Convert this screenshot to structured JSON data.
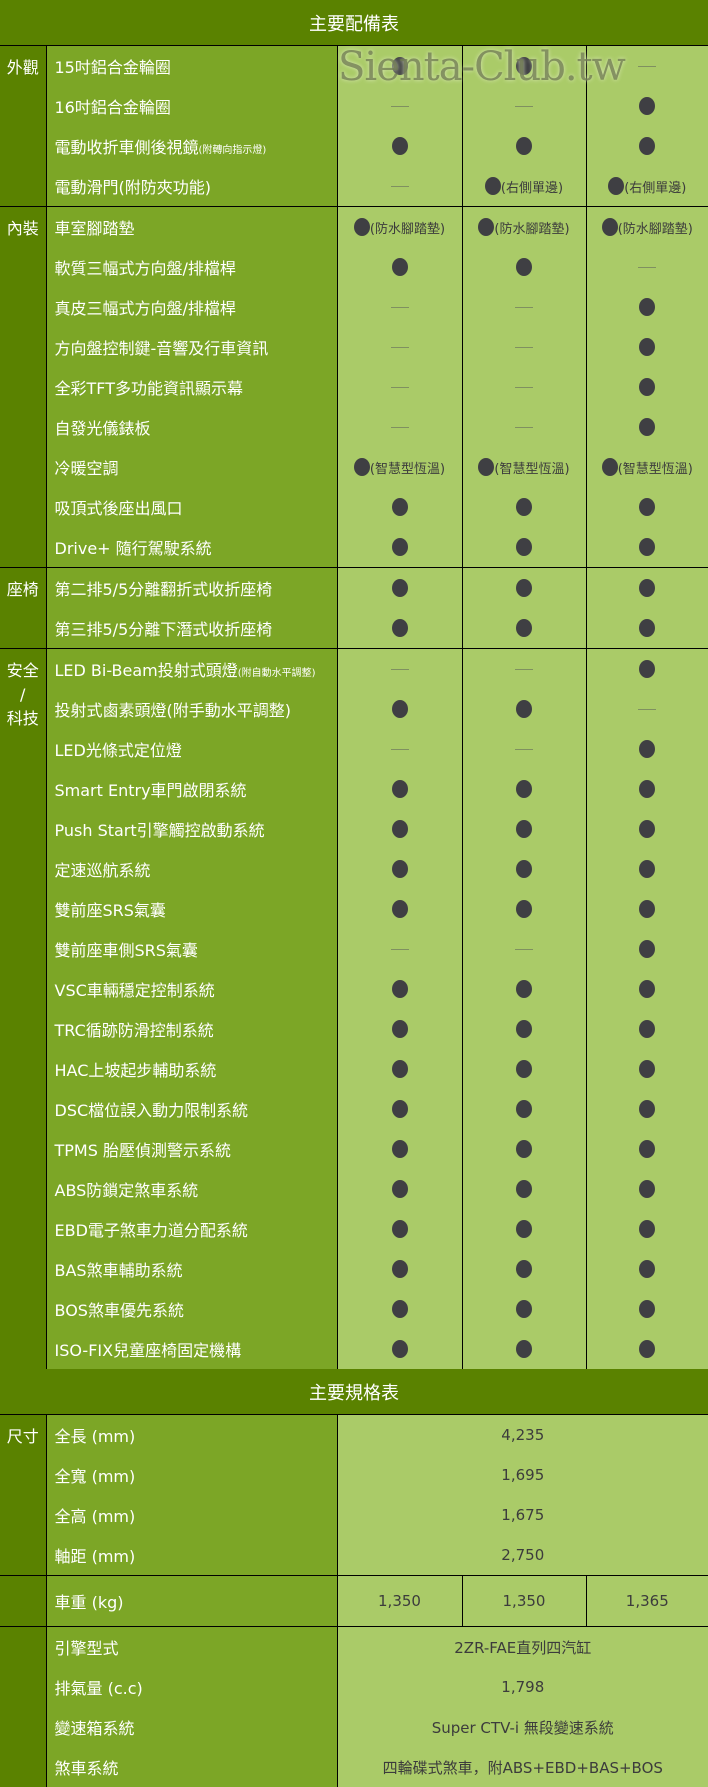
{
  "equipment": {
    "title": "主要配備表",
    "sections": [
      {
        "name": "外觀",
        "rows": [
          {
            "label": "15吋鋁合金輪圈",
            "values": [
              {
                "mark": "dot"
              },
              {
                "mark": "dot"
              },
              {
                "mark": "dash"
              }
            ]
          },
          {
            "label": "16吋鋁合金輪圈",
            "values": [
              {
                "mark": "dash"
              },
              {
                "mark": "dash"
              },
              {
                "mark": "dot"
              }
            ]
          },
          {
            "label": "電動收折車側後視鏡",
            "label_small": "(附轉向指示燈)",
            "values": [
              {
                "mark": "dot"
              },
              {
                "mark": "dot"
              },
              {
                "mark": "dot"
              }
            ]
          },
          {
            "label": "電動滑門(附防夾功能)",
            "values": [
              {
                "mark": "dash"
              },
              {
                "mark": "dot",
                "note": "(右側單邊)"
              },
              {
                "mark": "dot",
                "note": "(右側單邊)"
              }
            ]
          }
        ]
      },
      {
        "name": "內裝",
        "rows": [
          {
            "label": "車室腳踏墊",
            "values": [
              {
                "mark": "dot",
                "note": "(防水腳踏墊)"
              },
              {
                "mark": "dot",
                "note": "(防水腳踏墊)"
              },
              {
                "mark": "dot",
                "note": "(防水腳踏墊)"
              }
            ]
          },
          {
            "label": "軟質三幅式方向盤/排檔桿",
            "values": [
              {
                "mark": "dot"
              },
              {
                "mark": "dot"
              },
              {
                "mark": "dash"
              }
            ]
          },
          {
            "label": "真皮三幅式方向盤/排檔桿",
            "values": [
              {
                "mark": "dash"
              },
              {
                "mark": "dash"
              },
              {
                "mark": "dot"
              }
            ]
          },
          {
            "label": "方向盤控制鍵-音響及行車資訊",
            "values": [
              {
                "mark": "dash"
              },
              {
                "mark": "dash"
              },
              {
                "mark": "dot"
              }
            ]
          },
          {
            "label": "全彩TFT多功能資訊顯示幕",
            "values": [
              {
                "mark": "dash"
              },
              {
                "mark": "dash"
              },
              {
                "mark": "dot"
              }
            ]
          },
          {
            "label": "自發光儀錶板",
            "values": [
              {
                "mark": "dash"
              },
              {
                "mark": "dash"
              },
              {
                "mark": "dot"
              }
            ]
          },
          {
            "label": "冷暖空調",
            "values": [
              {
                "mark": "dot",
                "note": "(智慧型恆溫)"
              },
              {
                "mark": "dot",
                "note": "(智慧型恆溫)"
              },
              {
                "mark": "dot",
                "note": "(智慧型恆溫)"
              }
            ]
          },
          {
            "label": "吸頂式後座出風口",
            "values": [
              {
                "mark": "dot"
              },
              {
                "mark": "dot"
              },
              {
                "mark": "dot"
              }
            ]
          },
          {
            "label": "Drive+ 隨行駕駛系統",
            "values": [
              {
                "mark": "dot"
              },
              {
                "mark": "dot"
              },
              {
                "mark": "dot"
              }
            ]
          }
        ]
      },
      {
        "name": "座椅",
        "rows": [
          {
            "label": "第二排5/5分離翻折式收折座椅",
            "values": [
              {
                "mark": "dot"
              },
              {
                "mark": "dot"
              },
              {
                "mark": "dot"
              }
            ]
          },
          {
            "label": "第三排5/5分離下潛式收折座椅",
            "values": [
              {
                "mark": "dot"
              },
              {
                "mark": "dot"
              },
              {
                "mark": "dot"
              }
            ]
          }
        ]
      },
      {
        "name": "安全\n/\n科技",
        "rows": [
          {
            "label": "LED Bi-Beam投射式頭燈",
            "label_small": "(附自動水平調整)",
            "values": [
              {
                "mark": "dash"
              },
              {
                "mark": "dash"
              },
              {
                "mark": "dot"
              }
            ]
          },
          {
            "label": "投射式鹵素頭燈(附手動水平調整)",
            "values": [
              {
                "mark": "dot"
              },
              {
                "mark": "dot"
              },
              {
                "mark": "dash"
              }
            ]
          },
          {
            "label": "LED光條式定位燈",
            "values": [
              {
                "mark": "dash"
              },
              {
                "mark": "dash"
              },
              {
                "mark": "dot"
              }
            ]
          },
          {
            "label": "Smart Entry車門啟閉系統",
            "values": [
              {
                "mark": "dot"
              },
              {
                "mark": "dot"
              },
              {
                "mark": "dot"
              }
            ]
          },
          {
            "label": "Push Start引擎觸控啟動系統",
            "values": [
              {
                "mark": "dot"
              },
              {
                "mark": "dot"
              },
              {
                "mark": "dot"
              }
            ]
          },
          {
            "label": "定速巡航系統",
            "values": [
              {
                "mark": "dot"
              },
              {
                "mark": "dot"
              },
              {
                "mark": "dot"
              }
            ]
          },
          {
            "label": "雙前座SRS氣囊",
            "values": [
              {
                "mark": "dot"
              },
              {
                "mark": "dot"
              },
              {
                "mark": "dot"
              }
            ]
          },
          {
            "label": "雙前座車側SRS氣囊",
            "values": [
              {
                "mark": "dash"
              },
              {
                "mark": "dash"
              },
              {
                "mark": "dot"
              }
            ]
          },
          {
            "label": "VSC車輛穩定控制系統",
            "values": [
              {
                "mark": "dot"
              },
              {
                "mark": "dot"
              },
              {
                "mark": "dot"
              }
            ]
          },
          {
            "label": "TRC循跡防滑控制系統",
            "values": [
              {
                "mark": "dot"
              },
              {
                "mark": "dot"
              },
              {
                "mark": "dot"
              }
            ]
          },
          {
            "label": "HAC上坡起步輔助系統",
            "values": [
              {
                "mark": "dot"
              },
              {
                "mark": "dot"
              },
              {
                "mark": "dot"
              }
            ]
          },
          {
            "label": "DSC檔位誤入動力限制系統",
            "values": [
              {
                "mark": "dot"
              },
              {
                "mark": "dot"
              },
              {
                "mark": "dot"
              }
            ]
          },
          {
            "label": "TPMS 胎壓偵測警示系統",
            "values": [
              {
                "mark": "dot"
              },
              {
                "mark": "dot"
              },
              {
                "mark": "dot"
              }
            ]
          },
          {
            "label": "ABS防鎖定煞車系統",
            "values": [
              {
                "mark": "dot"
              },
              {
                "mark": "dot"
              },
              {
                "mark": "dot"
              }
            ]
          },
          {
            "label": "EBD電子煞車力道分配系統",
            "values": [
              {
                "mark": "dot"
              },
              {
                "mark": "dot"
              },
              {
                "mark": "dot"
              }
            ]
          },
          {
            "label": "BAS煞車輔助系統",
            "values": [
              {
                "mark": "dot"
              },
              {
                "mark": "dot"
              },
              {
                "mark": "dot"
              }
            ]
          },
          {
            "label": "BOS煞車優先系統",
            "values": [
              {
                "mark": "dot"
              },
              {
                "mark": "dot"
              },
              {
                "mark": "dot"
              }
            ]
          },
          {
            "label": "ISO-FIX兒童座椅固定機構",
            "values": [
              {
                "mark": "dot"
              },
              {
                "mark": "dot"
              },
              {
                "mark": "dot"
              }
            ]
          }
        ]
      }
    ]
  },
  "specs": {
    "title": "主要規格表",
    "sections": [
      {
        "name": "尺寸",
        "rows": [
          {
            "label": "全長 (mm)",
            "values": [
              "4,235"
            ]
          },
          {
            "label": "全寬 (mm)",
            "values": [
              "1,695"
            ]
          },
          {
            "label": "全高 (mm)",
            "values": [
              "1,675"
            ]
          },
          {
            "label": "軸距 (mm)",
            "values": [
              "2,750"
            ]
          }
        ]
      },
      {
        "name": "",
        "rows": [
          {
            "label": "車重 (kg)",
            "values": [
              "1,350",
              "1,350",
              "1,365"
            ]
          }
        ]
      },
      {
        "name": "",
        "rows": [
          {
            "label": "引擎型式",
            "values": [
              "2ZR-FAE直列四汽缸"
            ]
          },
          {
            "label": "排氣量 (c.c)",
            "values": [
              "1,798"
            ]
          },
          {
            "label": "變速箱系統",
            "values": [
              "Super CTV-i 無段變速系統"
            ]
          },
          {
            "label": "煞車系統",
            "values": [
              "四輪碟式煞車，附ABS+EBD+BAS+BOS"
            ]
          }
        ]
      }
    ]
  },
  "watermark": "Sienta-Club.tw",
  "colors": {
    "header": "#5a8200",
    "label": "#7ca626",
    "value": "#aacb68",
    "mark": "#3f3f43"
  }
}
